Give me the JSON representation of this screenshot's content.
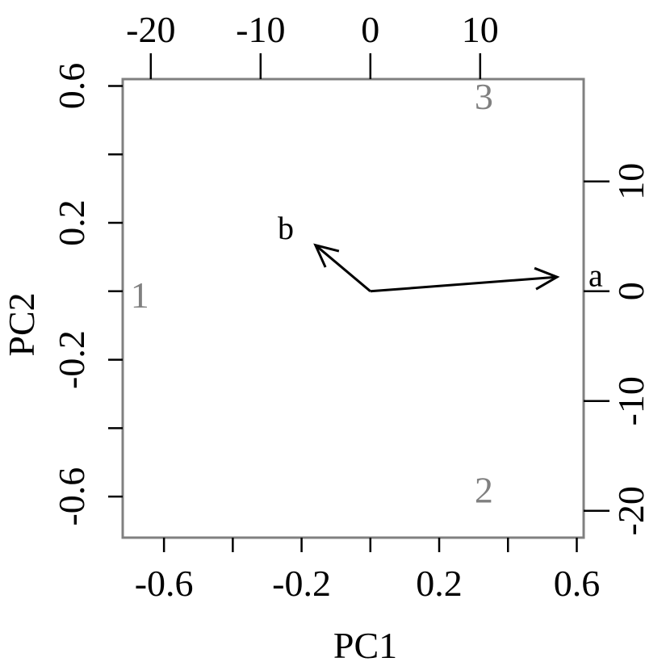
{
  "chart_data": {
    "type": "biplot",
    "xlabel": "PC1",
    "ylabel": "PC2",
    "xlim": [
      -0.72,
      0.62
    ],
    "ylim": [
      -0.72,
      0.62
    ],
    "x_ticks": [
      -0.6,
      -0.4,
      -0.2,
      0,
      0.2,
      0.4,
      0.6
    ],
    "x_tick_labels": [
      "-0.6",
      "",
      "-0.2",
      "",
      "0.2",
      "",
      "0.6"
    ],
    "y_ticks": [
      -0.6,
      -0.4,
      -0.2,
      0,
      0.2,
      0.4,
      0.6
    ],
    "y_tick_labels": [
      "-0.6",
      "",
      "-0.2",
      "",
      "0.2",
      "",
      "0.6"
    ],
    "top_ticks": [
      -20,
      -10,
      0,
      10
    ],
    "top_tick_labels": [
      "-20",
      "-10",
      "0",
      "10"
    ],
    "right_ticks": [
      -20,
      -10,
      0,
      10
    ],
    "right_tick_labels": [
      "-20",
      "-10",
      "0",
      "10"
    ],
    "observations": [
      {
        "label": "1",
        "x": -0.67,
        "y": -0.01
      },
      {
        "label": "2",
        "x": 0.33,
        "y": -0.58
      },
      {
        "label": "3",
        "x": 0.33,
        "y": 0.57
      }
    ],
    "loadings_scale_note": "",
    "loadings": [
      {
        "label": "a",
        "x": 17.0,
        "y": 1.3
      },
      {
        "label": "b",
        "x": -5.0,
        "y": 4.2
      }
    ],
    "colors": {
      "observation": "#808080",
      "arrow": "#000000",
      "frame": "#808080"
    }
  }
}
